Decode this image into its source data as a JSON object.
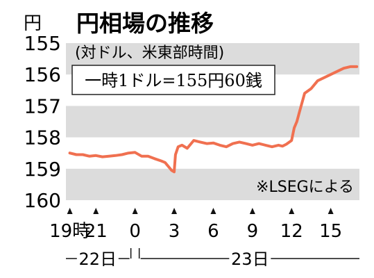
{
  "chart_data": {
    "type": "line",
    "unit": "円",
    "title": "円相場の推移",
    "subtitle": "(対ドル、米東部時間)",
    "annotation": "一時1ドル=155円60銭",
    "source": "※LSEGによる",
    "y_ticks": [
      "155",
      "156",
      "157",
      "158",
      "159",
      "160"
    ],
    "ylim": [
      160,
      155
    ],
    "y_inverted": true,
    "x_ticks": [
      {
        "label": "19時",
        "x": 19
      },
      {
        "label": "21",
        "x": 21
      },
      {
        "label": "0",
        "x": 24
      },
      {
        "label": "3",
        "x": 27
      },
      {
        "label": "6",
        "x": 30
      },
      {
        "label": "9",
        "x": 33
      },
      {
        "label": "12",
        "x": 36
      },
      {
        "label": "15",
        "x": 39
      }
    ],
    "day_labels": [
      {
        "label": "22日",
        "from": 18.7,
        "to": 24
      },
      {
        "label": "23日",
        "from": 24,
        "to": 41.2
      }
    ],
    "xlim": [
      18.7,
      41.2
    ],
    "band_color": "#dcdcdc",
    "line_color": "#f07050",
    "series": [
      {
        "x": [
          19.0,
          19.5,
          20.0,
          20.5,
          21.0,
          21.5,
          22.0,
          22.5,
          23.0,
          23.5,
          24.0,
          24.5,
          25.0,
          25.5,
          26.0,
          26.3,
          26.6,
          26.8,
          27.0,
          27.1,
          27.3,
          27.6,
          28.0,
          28.5,
          29.0,
          29.5,
          30.0,
          30.5,
          31.0,
          31.5,
          32.0,
          32.5,
          33.0,
          33.5,
          34.0,
          34.5,
          35.0,
          35.3,
          35.6,
          36.0,
          36.2,
          36.4,
          36.6,
          37.0,
          37.5,
          38.0,
          38.5,
          39.0,
          39.5,
          40.0,
          40.5,
          41.0
        ],
        "y": [
          158.5,
          158.55,
          158.55,
          158.6,
          158.58,
          158.62,
          158.6,
          158.58,
          158.55,
          158.5,
          158.48,
          158.6,
          158.6,
          158.68,
          158.75,
          158.8,
          158.95,
          159.05,
          159.1,
          158.55,
          158.3,
          158.25,
          158.35,
          158.1,
          158.15,
          158.2,
          158.18,
          158.25,
          158.3,
          158.2,
          158.15,
          158.2,
          158.25,
          158.2,
          158.25,
          158.3,
          158.25,
          158.28,
          158.22,
          158.1,
          157.7,
          157.5,
          157.2,
          156.6,
          156.45,
          156.2,
          156.1,
          156.0,
          155.9,
          155.8,
          155.75,
          155.75
        ]
      }
    ]
  }
}
